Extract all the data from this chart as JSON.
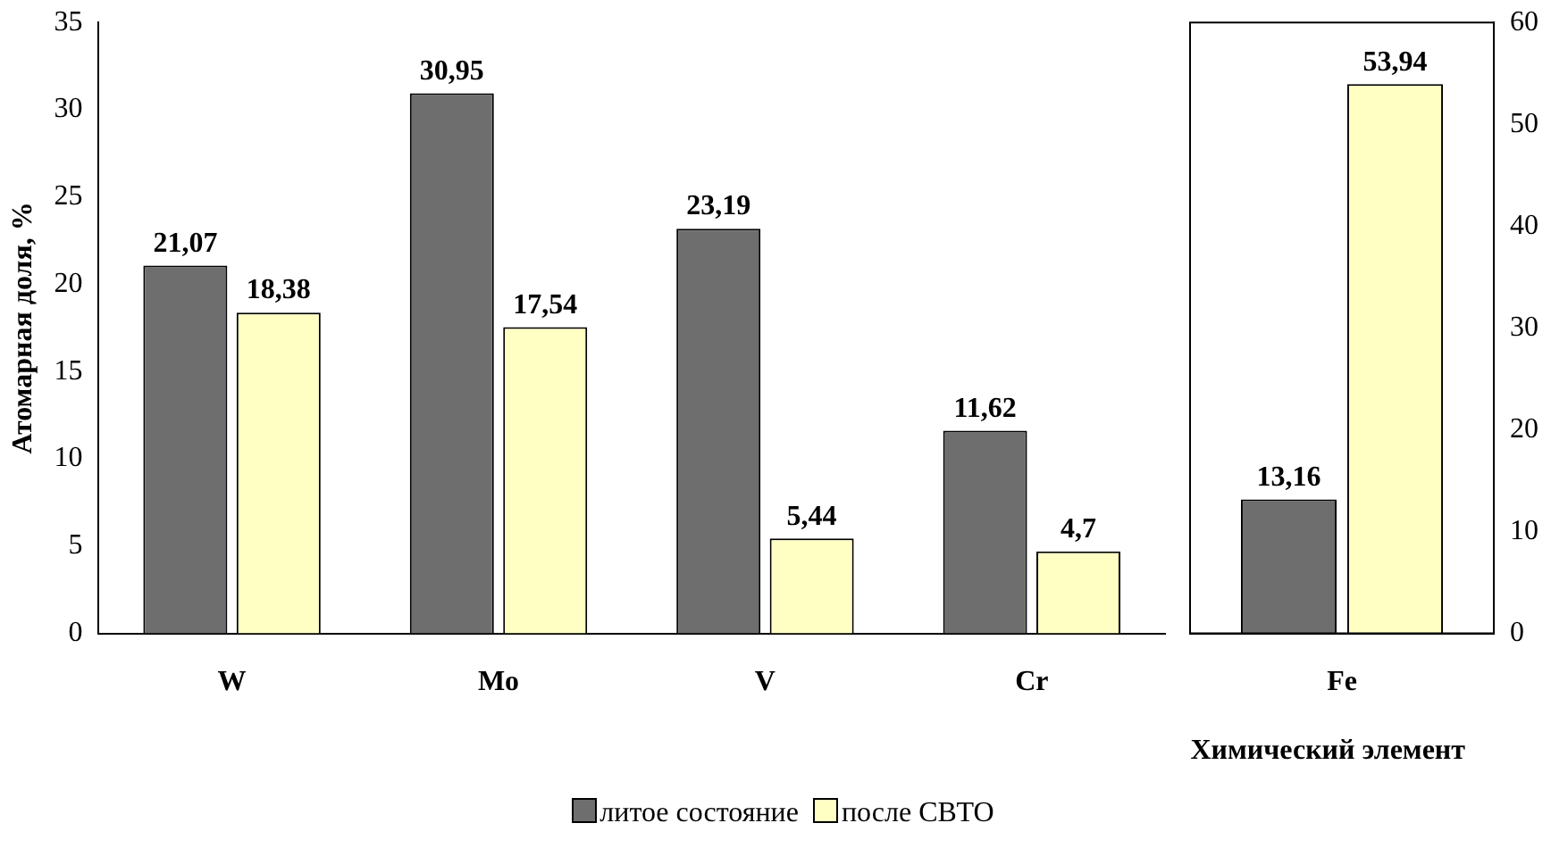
{
  "chart_data": [
    {
      "type": "bar",
      "ylabel": "Атомарная доля, %",
      "xlabel": "Химический элемент",
      "categories": [
        "W",
        "Mo",
        "V",
        "Cr"
      ],
      "series": [
        {
          "name": "литое состояние",
          "color": "#6e6e6e",
          "values": [
            21.07,
            30.95,
            23.19,
            11.62
          ],
          "value_labels": [
            "21,07",
            "30,95",
            "23,19",
            "11,62"
          ]
        },
        {
          "name": "после СВТО",
          "color": "#ffffc4",
          "values": [
            18.38,
            17.54,
            5.44,
            4.7
          ],
          "value_labels": [
            "18,38",
            "17,54",
            "5,44",
            "4,7"
          ]
        }
      ],
      "ylim": [
        0,
        35
      ],
      "yticks": [
        0,
        5,
        10,
        15,
        20,
        25,
        30,
        35
      ],
      "grid": false,
      "legend": "bottom"
    },
    {
      "type": "bar",
      "categories": [
        "Fe"
      ],
      "series": [
        {
          "color": "#6e6e6e",
          "values": [
            13.16
          ],
          "value_labels": [
            "13,16"
          ],
          "axis": "y2"
        },
        {
          "color": "#ffffc4",
          "values": [
            53.94
          ],
          "value_labels": [
            "53,94"
          ],
          "axis": "y2"
        }
      ],
      "y2lim": [
        0,
        60
      ],
      "y2ticks": [
        0,
        10,
        20,
        30,
        40,
        50,
        60
      ],
      "grid": false
    }
  ]
}
